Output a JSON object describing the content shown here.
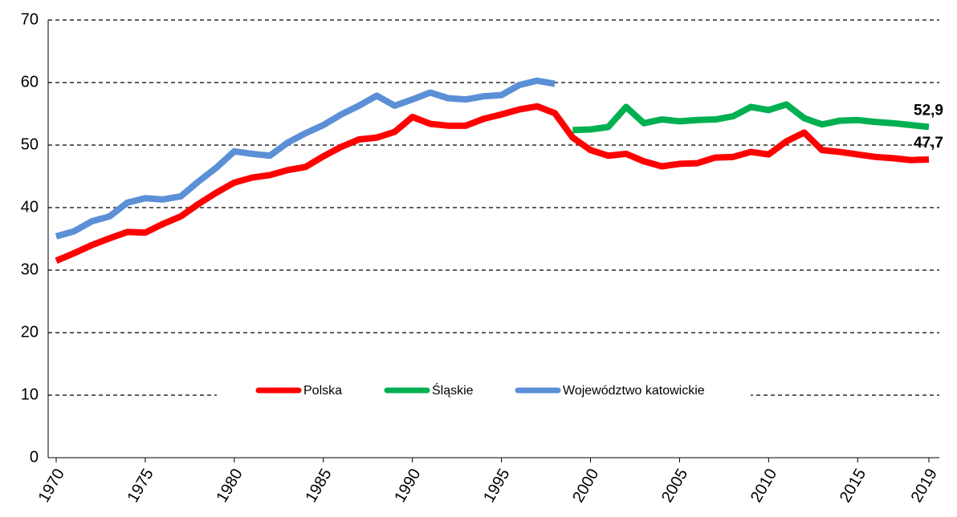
{
  "chart_data": {
    "type": "line",
    "x": [
      1970,
      1971,
      1972,
      1973,
      1974,
      1975,
      1976,
      1977,
      1978,
      1979,
      1980,
      1981,
      1982,
      1983,
      1984,
      1985,
      1986,
      1987,
      1988,
      1989,
      1990,
      1991,
      1992,
      1993,
      1994,
      1995,
      1996,
      1997,
      1998,
      1999,
      2000,
      2001,
      2002,
      2003,
      2004,
      2005,
      2006,
      2007,
      2008,
      2009,
      2010,
      2011,
      2012,
      2013,
      2014,
      2015,
      2016,
      2017,
      2018,
      2019
    ],
    "series": [
      {
        "name": "Polska",
        "color": "#ff0000",
        "values": [
          31.5,
          32.7,
          34.0,
          35.1,
          36.1,
          36.0,
          37.4,
          38.6,
          40.6,
          42.4,
          44.0,
          44.8,
          45.2,
          46.0,
          46.5,
          48.2,
          49.7,
          50.9,
          51.2,
          52.1,
          54.5,
          53.4,
          53.1,
          53.1,
          54.2,
          54.9,
          55.7,
          56.2,
          55.1,
          51.2,
          49.2,
          48.3,
          48.6,
          47.4,
          46.6,
          47.0,
          47.1,
          48.0,
          48.1,
          48.9,
          48.5,
          50.6,
          52.0,
          49.2,
          48.9,
          48.5,
          48.1,
          47.9,
          47.6,
          47.7
        ],
        "value_labels": [
          null,
          null,
          null,
          null,
          null,
          null,
          null,
          null,
          null,
          null,
          null,
          null,
          null,
          null,
          null,
          null,
          null,
          null,
          null,
          null,
          null,
          null,
          null,
          null,
          null,
          null,
          null,
          null,
          null,
          null,
          null,
          null,
          null,
          null,
          null,
          null,
          null,
          null,
          null,
          null,
          null,
          null,
          null,
          null,
          null,
          null,
          null,
          null,
          null,
          "47,7"
        ]
      },
      {
        "name": "Śląskie",
        "color": "#00b050",
        "values": [
          null,
          null,
          null,
          null,
          null,
          null,
          null,
          null,
          null,
          null,
          null,
          null,
          null,
          null,
          null,
          null,
          null,
          null,
          null,
          null,
          null,
          null,
          null,
          null,
          null,
          null,
          null,
          null,
          null,
          52.4,
          52.5,
          52.9,
          56.1,
          53.5,
          54.1,
          53.8,
          54.0,
          54.1,
          54.6,
          56.1,
          55.6,
          56.5,
          54.3,
          53.3,
          53.9,
          54.0,
          53.7,
          53.5,
          53.2,
          52.9
        ],
        "value_labels": [
          null,
          null,
          null,
          null,
          null,
          null,
          null,
          null,
          null,
          null,
          null,
          null,
          null,
          null,
          null,
          null,
          null,
          null,
          null,
          null,
          null,
          null,
          null,
          null,
          null,
          null,
          null,
          null,
          null,
          null,
          null,
          null,
          null,
          null,
          null,
          null,
          null,
          null,
          null,
          null,
          null,
          null,
          null,
          null,
          null,
          null,
          null,
          null,
          null,
          "52,9"
        ]
      },
      {
        "name": "Województwo katowickie",
        "color": "#5b8fd6",
        "values": [
          35.4,
          36.2,
          37.8,
          38.6,
          40.8,
          41.5,
          41.3,
          41.8,
          44.2,
          46.4,
          49.0,
          48.6,
          48.3,
          50.4,
          51.9,
          53.2,
          54.9,
          56.3,
          57.9,
          56.3,
          57.3,
          58.4,
          57.5,
          57.3,
          57.8,
          58.0,
          59.6,
          60.3,
          59.8,
          null,
          null,
          null,
          null,
          null,
          null,
          null,
          null,
          null,
          null,
          null,
          null,
          null,
          null,
          null,
          null,
          null,
          null,
          null,
          null,
          null
        ]
      }
    ],
    "xlim": [
      1970,
      2019
    ],
    "xticks": [
      1970,
      1975,
      1980,
      1985,
      1990,
      1995,
      2000,
      2005,
      2010,
      2015,
      2019
    ],
    "ylim": [
      0,
      70
    ],
    "yticks": [
      0,
      10,
      20,
      30,
      40,
      50,
      60,
      70
    ],
    "grid": true,
    "legend": "bottom"
  }
}
